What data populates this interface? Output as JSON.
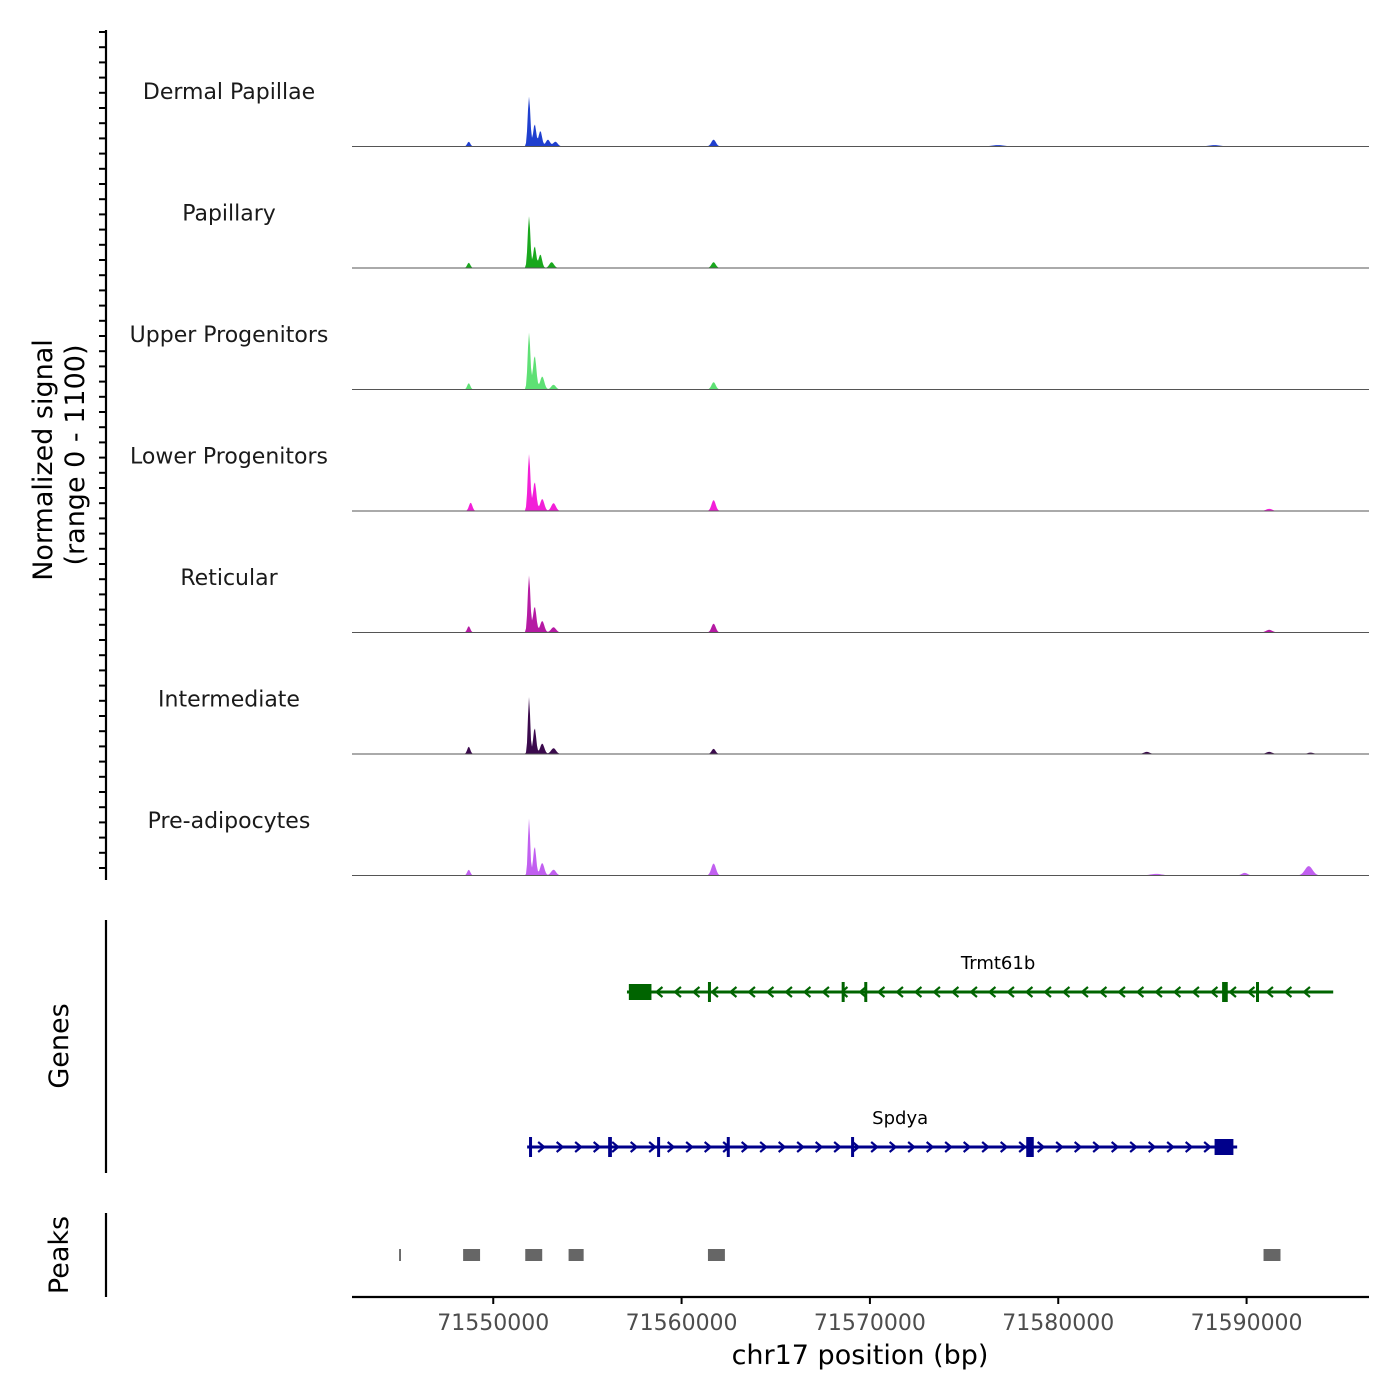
{
  "chart_data": {
    "type": "area",
    "title": "",
    "ylabel_line1": "Normalized signal",
    "ylabel_line2": "(range 0 - 1100)",
    "y_range": [
      0,
      1100
    ],
    "xlabel": "chr17 position (bp)",
    "x_range": [
      71542500,
      71596500
    ],
    "x_ticks": [
      71550000,
      71560000,
      71570000,
      71580000,
      71590000
    ],
    "x_tick_labels": [
      "71550000",
      "71560000",
      "71570000",
      "71580000",
      "71590000"
    ],
    "tracks": [
      {
        "name": "Dermal Papillae",
        "color": "#1f3fcf",
        "peaks": [
          [
            71548700,
            90,
            80
          ],
          [
            71551900,
            960,
            70
          ],
          [
            71552200,
            430,
            80
          ],
          [
            71552500,
            300,
            90
          ],
          [
            71552900,
            130,
            110
          ],
          [
            71553300,
            90,
            120
          ],
          [
            71561700,
            130,
            120
          ],
          [
            71576800,
            25,
            300
          ],
          [
            71588300,
            25,
            300
          ]
        ]
      },
      {
        "name": "Papillary",
        "color": "#19a81d",
        "peaks": [
          [
            71548700,
            100,
            80
          ],
          [
            71551900,
            1000,
            70
          ],
          [
            71552200,
            420,
            80
          ],
          [
            71552500,
            260,
            90
          ],
          [
            71553100,
            110,
            120
          ],
          [
            71561700,
            110,
            110
          ]
        ]
      },
      {
        "name": "Upper Progenitors",
        "color": "#5ee074",
        "peaks": [
          [
            71548700,
            120,
            80
          ],
          [
            71551900,
            1100,
            70
          ],
          [
            71552200,
            650,
            90
          ],
          [
            71552600,
            250,
            110
          ],
          [
            71553200,
            90,
            120
          ],
          [
            71561700,
            140,
            110
          ]
        ]
      },
      {
        "name": "Lower Progenitors",
        "color": "#f21fd8",
        "peaks": [
          [
            71548800,
            160,
            90
          ],
          [
            71551900,
            1100,
            70
          ],
          [
            71552200,
            560,
            90
          ],
          [
            71552600,
            230,
            110
          ],
          [
            71553200,
            150,
            120
          ],
          [
            71561700,
            210,
            110
          ],
          [
            71591200,
            40,
            160
          ]
        ]
      },
      {
        "name": "Reticular",
        "color": "#b51aa3",
        "peaks": [
          [
            71548700,
            120,
            80
          ],
          [
            71551900,
            1100,
            70
          ],
          [
            71552200,
            500,
            90
          ],
          [
            71552600,
            220,
            110
          ],
          [
            71553200,
            100,
            130
          ],
          [
            71561700,
            170,
            110
          ],
          [
            71591200,
            50,
            160
          ]
        ]
      },
      {
        "name": "Intermediate",
        "color": "#3b0a4d",
        "peaks": [
          [
            71548700,
            140,
            80
          ],
          [
            71551900,
            1100,
            60
          ],
          [
            71552200,
            500,
            80
          ],
          [
            71552600,
            200,
            110
          ],
          [
            71553200,
            110,
            130
          ],
          [
            71561700,
            100,
            100
          ],
          [
            71584700,
            40,
            150
          ],
          [
            71591200,
            40,
            150
          ],
          [
            71593400,
            25,
            150
          ]
        ]
      },
      {
        "name": "Pre-adipocytes",
        "color": "#c15ff0",
        "peaks": [
          [
            71548700,
            110,
            80
          ],
          [
            71551900,
            1100,
            60
          ],
          [
            71552200,
            560,
            80
          ],
          [
            71552600,
            240,
            110
          ],
          [
            71553200,
            110,
            130
          ],
          [
            71561700,
            230,
            120
          ],
          [
            71585200,
            30,
            300
          ],
          [
            71589900,
            50,
            150
          ],
          [
            71593300,
            180,
            200
          ]
        ]
      }
    ],
    "genes_label": "Genes",
    "genes": [
      {
        "name": "Trmt61b",
        "strand": "-",
        "color": "#006400",
        "start": 71557100,
        "end": 71594600,
        "exons": [
          [
            71557200,
            71558400
          ],
          [
            71561400,
            71561500
          ],
          [
            71568500,
            71568600
          ],
          [
            71569700,
            71569800
          ],
          [
            71588700,
            71589000
          ],
          [
            71590500,
            71590600
          ]
        ]
      },
      {
        "name": "Spdya",
        "strand": "+",
        "color": "#00008b",
        "start": 71551800,
        "end": 71589500,
        "exons": [
          [
            71551900,
            71552000
          ],
          [
            71556100,
            71556300
          ],
          [
            71558700,
            71558800
          ],
          [
            71562400,
            71562500
          ],
          [
            71569000,
            71569100
          ],
          [
            71578300,
            71578700
          ],
          [
            71588300,
            71589300
          ]
        ]
      }
    ],
    "peaks_label": "Peaks",
    "peaks": [
      [
        71545000,
        71545100
      ],
      [
        71548400,
        71549300
      ],
      [
        71551700,
        71552600
      ],
      [
        71554000,
        71554800
      ],
      [
        71561400,
        71562300
      ],
      [
        71590900,
        71591800
      ]
    ]
  }
}
